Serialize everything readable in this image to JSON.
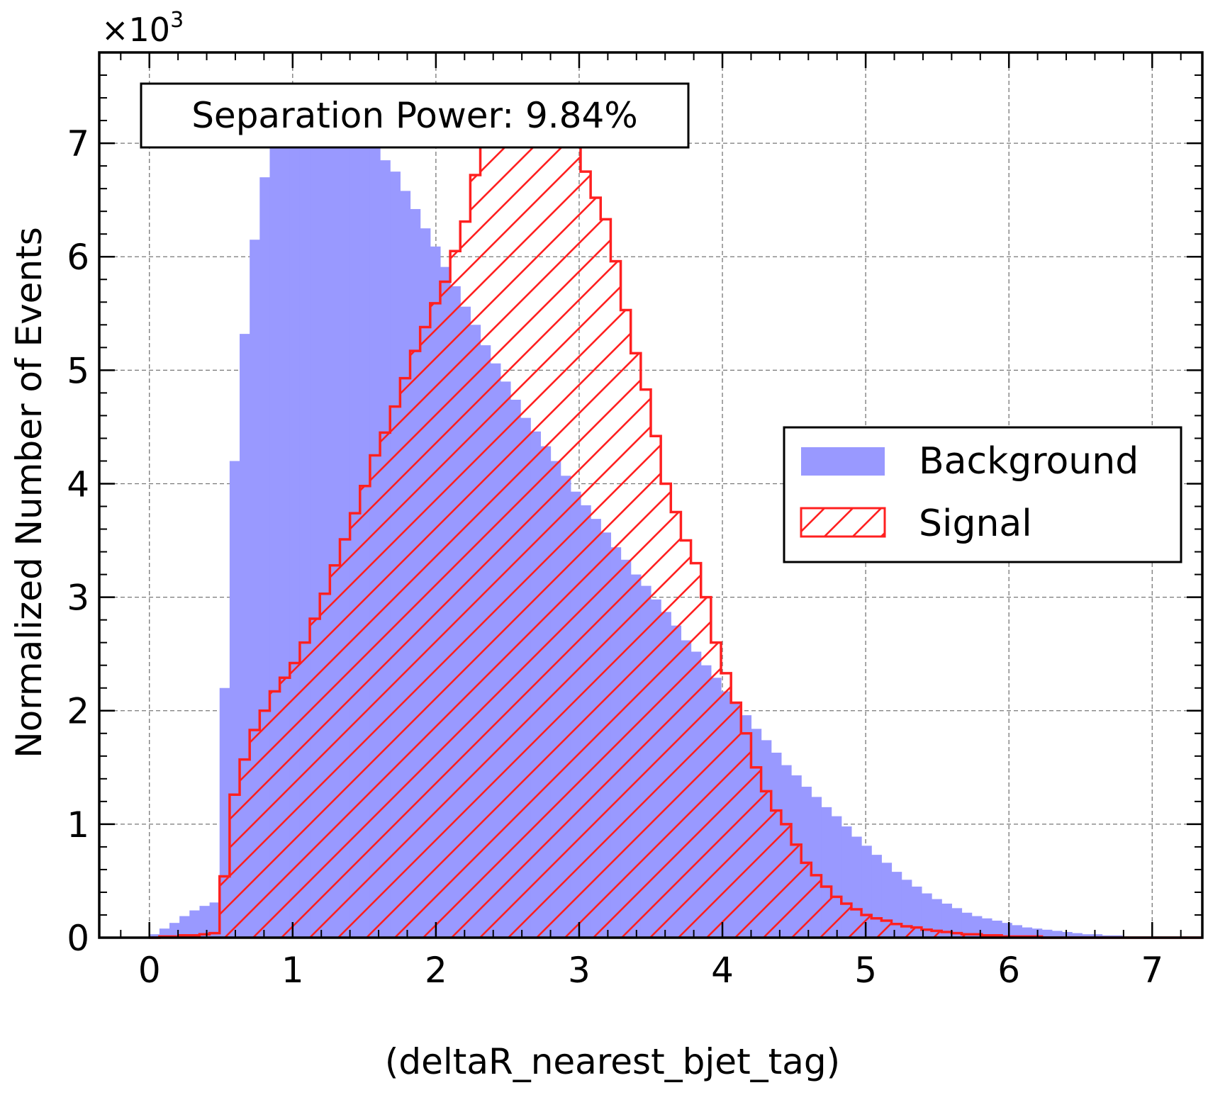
{
  "chart_data": {
    "type": "histogram",
    "xlabel": "(deltaR_nearest_bjet_tag)",
    "ylabel": "Normalized Number of Events",
    "y_multiplier": "×10",
    "y_multiplier_exp": "3",
    "annotation": "Separation Power: 9.84%",
    "xlim": [
      -0.35,
      7.35
    ],
    "ylim": [
      0,
      7.8
    ],
    "x_ticks": [
      0,
      1,
      2,
      3,
      4,
      5,
      6,
      7
    ],
    "y_ticks": [
      0,
      1,
      2,
      3,
      4,
      5,
      6,
      7
    ],
    "grid": true,
    "legend_position": "right",
    "bin_width": 0.07,
    "bin_start": 0,
    "series": [
      {
        "name": "Background",
        "style": "filled",
        "color": "#9999ff",
        "values": [
          0.03,
          0.08,
          0.13,
          0.19,
          0.24,
          0.28,
          0.31,
          2.2,
          4.2,
          5.32,
          6.15,
          6.7,
          7.0,
          7.0,
          7.0,
          7.0,
          7.0,
          7.0,
          7.0,
          7.0,
          7.0,
          7.0,
          6.96,
          6.85,
          6.75,
          6.58,
          6.42,
          6.25,
          6.09,
          5.91,
          5.74,
          5.56,
          5.4,
          5.22,
          5.06,
          4.9,
          4.74,
          4.58,
          4.46,
          4.33,
          4.2,
          4.07,
          3.93,
          3.81,
          3.69,
          3.57,
          3.44,
          3.33,
          3.2,
          3.1,
          2.98,
          2.87,
          2.75,
          2.62,
          2.52,
          2.4,
          2.29,
          2.17,
          2.07,
          1.96,
          1.84,
          1.74,
          1.63,
          1.52,
          1.43,
          1.33,
          1.24,
          1.15,
          1.07,
          0.98,
          0.89,
          0.81,
          0.73,
          0.66,
          0.58,
          0.51,
          0.45,
          0.39,
          0.34,
          0.3,
          0.26,
          0.22,
          0.19,
          0.17,
          0.15,
          0.13,
          0.11,
          0.09,
          0.08,
          0.07,
          0.06,
          0.05,
          0.04,
          0.03,
          0.03,
          0.02,
          0.02,
          0.01,
          0.01,
          0.01,
          0.01,
          0.0,
          0.0,
          0.0,
          0.0
        ]
      },
      {
        "name": "Signal",
        "style": "hatched",
        "color": "#ff2020",
        "values": [
          0.0,
          0.01,
          0.01,
          0.02,
          0.02,
          0.03,
          0.04,
          0.54,
          1.26,
          1.57,
          1.83,
          2.0,
          2.17,
          2.29,
          2.42,
          2.6,
          2.81,
          3.03,
          3.28,
          3.51,
          3.74,
          3.98,
          4.25,
          4.45,
          4.68,
          4.93,
          5.17,
          5.38,
          5.59,
          5.78,
          6.05,
          6.31,
          6.72,
          7.0,
          7.0,
          7.0,
          7.0,
          7.0,
          7.0,
          7.0,
          7.0,
          7.0,
          7.0,
          6.75,
          6.52,
          6.33,
          5.96,
          5.53,
          5.15,
          4.83,
          4.42,
          4.0,
          3.75,
          3.5,
          3.3,
          3.0,
          2.6,
          2.33,
          2.07,
          1.8,
          1.5,
          1.29,
          1.12,
          1.0,
          0.82,
          0.66,
          0.55,
          0.45,
          0.36,
          0.3,
          0.25,
          0.2,
          0.17,
          0.15,
          0.12,
          0.1,
          0.09,
          0.07,
          0.06,
          0.05,
          0.04,
          0.03,
          0.03,
          0.02,
          0.02,
          0.01,
          0.01,
          0.01,
          0.01,
          0.0,
          0.0,
          0.0,
          0.0,
          0.0,
          0.0,
          0.0,
          0.0,
          0.0,
          0.0,
          0.0,
          0.0,
          0.0,
          0.0,
          0.0,
          0.0
        ]
      }
    ]
  }
}
